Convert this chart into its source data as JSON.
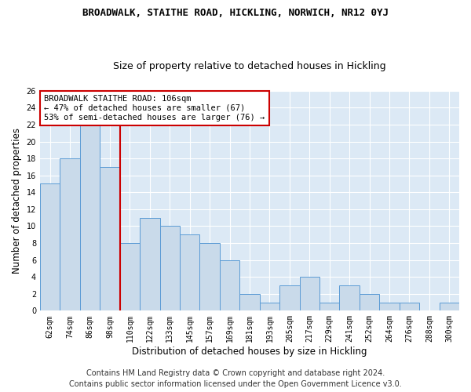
{
  "title": "BROADWALK, STAITHE ROAD, HICKLING, NORWICH, NR12 0YJ",
  "subtitle": "Size of property relative to detached houses in Hickling",
  "xlabel": "Distribution of detached houses by size in Hickling",
  "ylabel": "Number of detached properties",
  "categories": [
    "62sqm",
    "74sqm",
    "86sqm",
    "98sqm",
    "110sqm",
    "122sqm",
    "133sqm",
    "145sqm",
    "157sqm",
    "169sqm",
    "181sqm",
    "193sqm",
    "205sqm",
    "217sqm",
    "229sqm",
    "241sqm",
    "252sqm",
    "264sqm",
    "276sqm",
    "288sqm",
    "300sqm"
  ],
  "values": [
    15,
    18,
    22,
    17,
    8,
    11,
    10,
    9,
    8,
    6,
    2,
    1,
    3,
    4,
    1,
    3,
    2,
    1,
    1,
    0,
    1
  ],
  "bar_color": "#c9daea",
  "bar_edge_color": "#5b9bd5",
  "vline_x": 3.5,
  "vline_color": "#cc0000",
  "annotation_line1": "BROADWALK STAITHE ROAD: 106sqm",
  "annotation_line2": "← 47% of detached houses are smaller (67)",
  "annotation_line3": "53% of semi-detached houses are larger (76) →",
  "annotation_box_color": "#ffffff",
  "annotation_box_edge": "#cc0000",
  "ylim": [
    0,
    26
  ],
  "yticks": [
    0,
    2,
    4,
    6,
    8,
    10,
    12,
    14,
    16,
    18,
    20,
    22,
    24,
    26
  ],
  "footer_line1": "Contains HM Land Registry data © Crown copyright and database right 2024.",
  "footer_line2": "Contains public sector information licensed under the Open Government Licence v3.0.",
  "fig_bg_color": "#ffffff",
  "bg_color": "#dce9f5",
  "grid_color": "#ffffff",
  "title_fontsize": 9,
  "subtitle_fontsize": 9,
  "axis_label_fontsize": 8.5,
  "tick_fontsize": 7,
  "footer_fontsize": 7,
  "annotation_fontsize": 7.5
}
